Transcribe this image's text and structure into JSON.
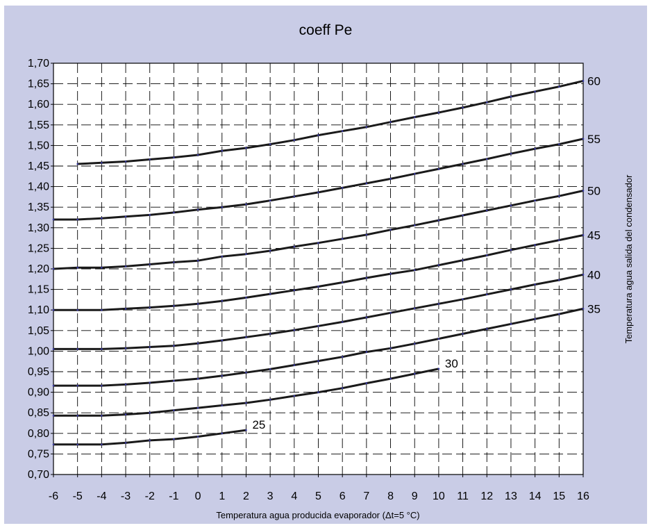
{
  "chart_data": {
    "type": "line",
    "title": "coeff Pe",
    "xlabel": "Temperatura agua producida evaporador (Δt=5 °C)",
    "ylabel": "",
    "right_ylabel": "Temperatura agua salida del condensador",
    "xlim": [
      -6,
      16
    ],
    "ylim": [
      0.7,
      1.7
    ],
    "x_ticks": [
      "-6",
      "-5",
      "-4",
      "-3",
      "-2",
      "-1",
      "0",
      "1",
      "2",
      "3",
      "4",
      "5",
      "6",
      "7",
      "8",
      "9",
      "10",
      "11",
      "12",
      "13",
      "14",
      "15",
      "16"
    ],
    "y_ticks": [
      "1,70",
      "1,65",
      "1,60",
      "1,55",
      "1,50",
      "1,45",
      "1,40",
      "1,35",
      "1,30",
      "1,25",
      "1,20",
      "1,15",
      "1,10",
      "1,05",
      "1,00",
      "0,95",
      "0,90",
      "0,85",
      "0,80",
      "0,75",
      "0,70"
    ],
    "grid": "dashed",
    "series": [
      {
        "name": "60",
        "x": [
          -5,
          -4,
          -3,
          -2,
          -1,
          0,
          1,
          2,
          3,
          4,
          5,
          6,
          7,
          8,
          9,
          10,
          11,
          12,
          13,
          14,
          15,
          16
        ],
        "y": [
          1.455,
          1.458,
          1.461,
          1.466,
          1.471,
          1.477,
          1.487,
          1.494,
          1.503,
          1.513,
          1.525,
          1.535,
          1.545,
          1.557,
          1.569,
          1.58,
          1.592,
          1.605,
          1.619,
          1.631,
          1.643,
          1.657
        ]
      },
      {
        "name": "55",
        "x": [
          -6,
          -5,
          -4,
          -3,
          -2,
          -1,
          0,
          1,
          2,
          3,
          4,
          5,
          6,
          7,
          8,
          9,
          10,
          11,
          12,
          13,
          14,
          15,
          16
        ],
        "y": [
          1.32,
          1.32,
          1.323,
          1.327,
          1.331,
          1.337,
          1.344,
          1.35,
          1.357,
          1.366,
          1.376,
          1.386,
          1.397,
          1.408,
          1.419,
          1.431,
          1.443,
          1.455,
          1.467,
          1.48,
          1.492,
          1.503,
          1.516
        ]
      },
      {
        "name": "50",
        "x": [
          -6,
          -5,
          -4,
          -3,
          -2,
          -1,
          0,
          1,
          2,
          3,
          4,
          5,
          6,
          7,
          8,
          9,
          10,
          11,
          12,
          13,
          14,
          15,
          16
        ],
        "y": [
          1.2,
          1.203,
          1.203,
          1.206,
          1.211,
          1.216,
          1.22,
          1.23,
          1.236,
          1.244,
          1.254,
          1.263,
          1.273,
          1.283,
          1.295,
          1.306,
          1.318,
          1.33,
          1.342,
          1.354,
          1.366,
          1.377,
          1.39
        ]
      },
      {
        "name": "45",
        "x": [
          -6,
          -5,
          -4,
          -3,
          -2,
          -1,
          0,
          1,
          2,
          3,
          4,
          5,
          6,
          7,
          8,
          9,
          10,
          11,
          12,
          13,
          14,
          15,
          16
        ],
        "y": [
          1.1,
          1.1,
          1.1,
          1.103,
          1.106,
          1.11,
          1.115,
          1.122,
          1.13,
          1.139,
          1.148,
          1.157,
          1.167,
          1.178,
          1.188,
          1.197,
          1.209,
          1.221,
          1.233,
          1.246,
          1.258,
          1.27,
          1.282
        ]
      },
      {
        "name": "40",
        "x": [
          -6,
          -5,
          -4,
          -3,
          -2,
          -1,
          0,
          1,
          2,
          3,
          4,
          5,
          6,
          7,
          8,
          9,
          10,
          11,
          12,
          13,
          14,
          15,
          16
        ],
        "y": [
          1.005,
          1.005,
          1.005,
          1.007,
          1.01,
          1.013,
          1.019,
          1.026,
          1.034,
          1.042,
          1.051,
          1.061,
          1.071,
          1.082,
          1.093,
          1.104,
          1.115,
          1.126,
          1.138,
          1.15,
          1.162,
          1.173,
          1.186
        ]
      },
      {
        "name": "35",
        "x": [
          -6,
          -5,
          -4,
          -3,
          -2,
          -1,
          0,
          1,
          2,
          3,
          4,
          5,
          6,
          7,
          8,
          9,
          10,
          11,
          12,
          13,
          14,
          15,
          16
        ],
        "y": [
          0.916,
          0.916,
          0.916,
          0.919,
          0.923,
          0.928,
          0.933,
          0.94,
          0.948,
          0.956,
          0.966,
          0.976,
          0.986,
          0.998,
          1.007,
          1.018,
          1.03,
          1.042,
          1.054,
          1.066,
          1.078,
          1.09,
          1.103
        ]
      },
      {
        "name": "30",
        "x": [
          -6,
          -5,
          -4,
          -3,
          -2,
          -1,
          0,
          1,
          2,
          3,
          4,
          5,
          6,
          7,
          8,
          9,
          10
        ],
        "y": [
          0.843,
          0.843,
          0.843,
          0.846,
          0.85,
          0.856,
          0.862,
          0.868,
          0.874,
          0.882,
          0.891,
          0.9,
          0.91,
          0.922,
          0.933,
          0.945,
          0.957
        ]
      },
      {
        "name": "25",
        "x": [
          -6,
          -5,
          -4,
          -3,
          -2,
          -1,
          0,
          1,
          2
        ],
        "y": [
          0.773,
          0.773,
          0.773,
          0.777,
          0.783,
          0.786,
          0.792,
          0.8,
          0.808
        ]
      }
    ]
  }
}
